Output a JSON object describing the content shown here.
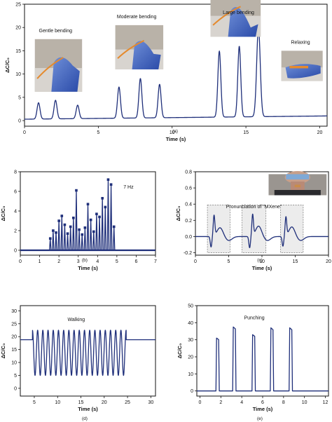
{
  "chart_data": [
    {
      "id": "a",
      "type": "line",
      "subplot_label": "(a)",
      "xlabel": "Time (s)",
      "ylabel": "ΔC/C₀",
      "xlim": [
        0,
        20.5
      ],
      "ylim": [
        -1.2,
        25
      ],
      "xticks": [
        0,
        5,
        10,
        15,
        20
      ],
      "yticks": [
        0,
        5,
        10,
        15,
        20,
        25
      ],
      "baseline": 0.3,
      "baseline_end": 1.0,
      "peaks": [
        {
          "x": 0.95,
          "y": 3.8,
          "w": 0.1
        },
        {
          "x": 2.1,
          "y": 4.3,
          "w": 0.1
        },
        {
          "x": 3.6,
          "y": 3.2,
          "w": 0.1
        },
        {
          "x": 6.4,
          "y": 7.0,
          "w": 0.1
        },
        {
          "x": 7.85,
          "y": 8.8,
          "w": 0.1
        },
        {
          "x": 9.15,
          "y": 7.5,
          "w": 0.1
        },
        {
          "x": 13.2,
          "y": 14.5,
          "w": 0.1
        },
        {
          "x": 14.55,
          "y": 15.5,
          "w": 0.1
        },
        {
          "x": 15.85,
          "y": 19.5,
          "w": 0.12
        }
      ],
      "annotations": [
        {
          "text": "Gentle bending",
          "x": 2.1,
          "y": 19.0
        },
        {
          "text": "Moderate bending",
          "x": 7.6,
          "y": 22.0
        },
        {
          "text": "Large bending",
          "x": 14.5,
          "y": 29.5
        },
        {
          "text": "Relaxing",
          "x": 18.7,
          "y": 16.5
        }
      ],
      "photos": [
        {
          "name": "gentle-bending-photo",
          "x0": 0.7,
          "x1": 3.9,
          "y0": 17.5,
          "y1": 6.2
        },
        {
          "name": "moderate-bending-photo",
          "x0": 6.15,
          "x1": 9.4,
          "y0": 20.5,
          "y1": 11.0
        },
        {
          "name": "large-bending-photo",
          "x0": 12.6,
          "x1": 16.0,
          "y0": 28.0,
          "y1": 18.0
        },
        {
          "name": "relaxing-photo",
          "x0": 17.4,
          "x1": 20.2,
          "y0": 15.0,
          "y1": 8.5
        }
      ]
    },
    {
      "id": "b",
      "type": "line",
      "subplot_label": "(b)",
      "xlabel": "Time (s)",
      "ylabel": "ΔC/C₀",
      "xlim": [
        0,
        7
      ],
      "ylim": [
        -0.5,
        8
      ],
      "xticks": [
        0,
        1,
        2,
        3,
        4,
        5,
        6,
        7
      ],
      "yticks": [
        0,
        2,
        4,
        6,
        8
      ],
      "annotation": {
        "text": "7 Hz",
        "x": 5.6,
        "y": 6.3
      },
      "peaks": [
        {
          "x": 1.55,
          "y": 1.2
        },
        {
          "x": 1.7,
          "y": 2.0
        },
        {
          "x": 1.85,
          "y": 1.8
        },
        {
          "x": 2.0,
          "y": 3.0
        },
        {
          "x": 2.15,
          "y": 3.5
        },
        {
          "x": 2.3,
          "y": 2.6
        },
        {
          "x": 2.45,
          "y": 1.7
        },
        {
          "x": 2.6,
          "y": 2.4
        },
        {
          "x": 2.75,
          "y": 3.3
        },
        {
          "x": 2.9,
          "y": 6.1
        },
        {
          "x": 3.05,
          "y": 2.1
        },
        {
          "x": 3.2,
          "y": 1.6
        },
        {
          "x": 3.35,
          "y": 2.3
        },
        {
          "x": 3.5,
          "y": 4.7
        },
        {
          "x": 3.65,
          "y": 3.1
        },
        {
          "x": 3.8,
          "y": 1.9
        },
        {
          "x": 3.95,
          "y": 3.7
        },
        {
          "x": 4.1,
          "y": 3.4
        },
        {
          "x": 4.25,
          "y": 5.3
        },
        {
          "x": 4.4,
          "y": 4.4
        },
        {
          "x": 4.55,
          "y": 7.2
        },
        {
          "x": 4.7,
          "y": 6.7
        },
        {
          "x": 4.85,
          "y": 2.4
        }
      ]
    },
    {
      "id": "c",
      "type": "line",
      "subplot_label": "(c)",
      "xlabel": "Time (s)",
      "ylabel": "ΔC/C₀",
      "xlim": [
        0,
        20
      ],
      "ylim": [
        -0.23,
        0.8
      ],
      "xticks": [
        0,
        5,
        10,
        15,
        20
      ],
      "yticks": [
        -0.2,
        0.0,
        0.2,
        0.4,
        0.6,
        0.8
      ],
      "annotation": {
        "text": "Pronunciation of \"MXene\"",
        "x": 8.8,
        "y": 0.35
      },
      "photo": {
        "name": "throat-sensor-photo",
        "x0": 11.0,
        "x1": 19.7,
        "y0": 0.77,
        "y1": 0.51
      },
      "shaded_regions": [
        [
          1.8,
          5.2
        ],
        [
          7.0,
          10.6
        ],
        [
          12.8,
          16.2
        ]
      ],
      "events": [
        {
          "x": 2.8,
          "pos": 0.25,
          "neg": -0.13,
          "mid": 0.11
        },
        {
          "x": 8.6,
          "pos": 0.26,
          "neg": -0.14,
          "mid": 0.13
        },
        {
          "x": 13.6,
          "pos": 0.23,
          "neg": -0.12,
          "mid": 0.12
        }
      ]
    },
    {
      "id": "d",
      "type": "line",
      "subplot_label": "(d)",
      "xlabel": "Time (s)",
      "ylabel": "ΔC/C₀",
      "xlim": [
        2,
        31
      ],
      "ylim": [
        -3,
        32
      ],
      "xticks": [
        5,
        10,
        15,
        20,
        25,
        30
      ],
      "yticks": [
        0,
        5,
        10,
        15,
        20,
        25,
        30
      ],
      "annotation": {
        "text": "Walking",
        "x": 14,
        "y": 26
      },
      "baseline": 18.8,
      "start": 4.6,
      "end": 24.7,
      "steps": 18,
      "high": 22.5,
      "low": 5.0
    },
    {
      "id": "e",
      "type": "line",
      "subplot_label": "(e)",
      "xlabel": "Time (s)",
      "ylabel": "ΔC/C₀",
      "xlim": [
        -0.3,
        12.3
      ],
      "ylim": [
        -3,
        50
      ],
      "xticks": [
        0,
        2,
        4,
        6,
        8,
        10,
        12
      ],
      "yticks": [
        0,
        10,
        20,
        30,
        40,
        50
      ],
      "annotation": {
        "text": "Punching",
        "x": 5.2,
        "y": 42
      },
      "peaks": [
        {
          "x": 1.65,
          "y": 31.0
        },
        {
          "x": 3.25,
          "y": 37.5
        },
        {
          "x": 5.1,
          "y": 33.0
        },
        {
          "x": 6.85,
          "y": 37.0
        },
        {
          "x": 8.65,
          "y": 37.0
        }
      ]
    }
  ]
}
